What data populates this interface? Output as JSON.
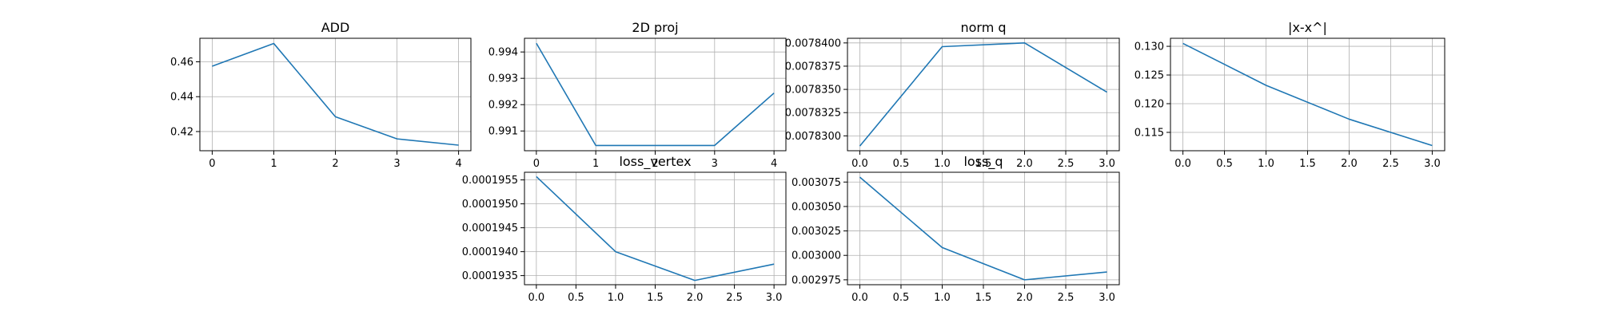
{
  "chart_data": [
    {
      "type": "line",
      "title": "ADD",
      "x": [
        0,
        1,
        2,
        3,
        4
      ],
      "series": [
        {
          "values": [
            0.4575,
            0.4705,
            0.4285,
            0.4158,
            0.4122
          ]
        }
      ],
      "xlim": [
        -0.2,
        4.2
      ],
      "ylim": [
        0.409,
        0.4735
      ],
      "xticks": [
        0,
        1,
        2,
        3,
        4
      ],
      "xtick_labels": [
        "0",
        "1",
        "2",
        "3",
        "4"
      ],
      "yticks": [
        0.42,
        0.44,
        0.46
      ],
      "ytick_labels": [
        "0.42",
        "0.44",
        "0.46"
      ],
      "grid": true,
      "color": "#1f77b4"
    },
    {
      "type": "line",
      "title": "2D proj",
      "x": [
        0,
        1,
        2,
        3,
        4
      ],
      "series": [
        {
          "values": [
            0.99433,
            0.99045,
            0.99045,
            0.99045,
            0.99244
          ]
        }
      ],
      "xlim": [
        -0.2,
        4.2
      ],
      "ylim": [
        0.99025,
        0.99452
      ],
      "xticks": [
        0,
        1,
        2,
        3,
        4
      ],
      "xtick_labels": [
        "0",
        "1",
        "2",
        "3",
        "4"
      ],
      "yticks": [
        0.991,
        0.992,
        0.993,
        0.994
      ],
      "ytick_labels": [
        "0.991",
        "0.992",
        "0.993",
        "0.994"
      ],
      "grid": true,
      "color": "#1f77b4"
    },
    {
      "type": "line",
      "title": "norm q",
      "x": [
        0,
        1,
        2,
        3
      ],
      "series": [
        {
          "values": [
            0.0078289,
            0.0078396,
            0.00784,
            0.0078347
          ]
        }
      ],
      "xlim": [
        -0.15,
        3.15
      ],
      "ylim": [
        0.0078284,
        0.0078405
      ],
      "xticks": [
        0.0,
        0.5,
        1.0,
        1.5,
        2.0,
        2.5,
        3.0
      ],
      "xtick_labels": [
        "0.0",
        "0.5",
        "1.0",
        "1.5",
        "2.0",
        "2.5",
        "3.0"
      ],
      "yticks": [
        0.00783,
        0.007832500000000001,
        0.007835,
        0.0078375,
        0.00784
      ],
      "ytick_labels": [
        "0.0078300",
        "0.0078325",
        "0.0078350",
        "0.0078375",
        "0.0078400"
      ],
      "grid": true,
      "color": "#1f77b4"
    },
    {
      "type": "line",
      "title": "|x-x^|",
      "x": [
        0,
        1,
        2,
        3
      ],
      "series": [
        {
          "values": [
            0.1305,
            0.1232,
            0.1173,
            0.1127
          ]
        }
      ],
      "xlim": [
        -0.15,
        3.15
      ],
      "ylim": [
        0.1118,
        0.1314
      ],
      "xticks": [
        0.0,
        0.5,
        1.0,
        1.5,
        2.0,
        2.5,
        3.0
      ],
      "xtick_labels": [
        "0.0",
        "0.5",
        "1.0",
        "1.5",
        "2.0",
        "2.5",
        "3.0"
      ],
      "yticks": [
        0.115,
        0.12,
        0.125,
        0.13
      ],
      "ytick_labels": [
        "0.115",
        "0.120",
        "0.125",
        "0.130"
      ],
      "grid": true,
      "color": "#1f77b4"
    },
    {
      "type": "line",
      "title": "loss_vertex",
      "x": [
        0,
        1,
        2,
        3
      ],
      "series": [
        {
          "values": [
            0.00019557,
            0.000194,
            0.0001934,
            0.00019374
          ]
        }
      ],
      "xlim": [
        -0.15,
        3.15
      ],
      "ylim": [
        0.00019331,
        0.00019566
      ],
      "xticks": [
        0.0,
        0.5,
        1.0,
        1.5,
        2.0,
        2.5,
        3.0
      ],
      "xtick_labels": [
        "0.0",
        "0.5",
        "1.0",
        "1.5",
        "2.0",
        "2.5",
        "3.0"
      ],
      "yticks": [
        0.0001935,
        0.000194,
        0.0001945,
        0.000195,
        0.0001955
      ],
      "ytick_labels": [
        "0.0001935",
        "0.0001940",
        "0.0001945",
        "0.0001950",
        "0.0001955"
      ],
      "grid": true,
      "color": "#1f77b4"
    },
    {
      "type": "line",
      "title": "loss_q",
      "x": [
        0,
        1,
        2,
        3
      ],
      "series": [
        {
          "values": [
            0.00308,
            0.003008,
            0.002975,
            0.002983
          ]
        }
      ],
      "xlim": [
        -0.15,
        3.15
      ],
      "ylim": [
        0.00297,
        0.003085
      ],
      "xticks": [
        0.0,
        0.5,
        1.0,
        1.5,
        2.0,
        2.5,
        3.0
      ],
      "xtick_labels": [
        "0.0",
        "0.5",
        "1.0",
        "1.5",
        "2.0",
        "2.5",
        "3.0"
      ],
      "yticks": [
        0.002975,
        0.003,
        0.003025,
        0.00305,
        0.003075
      ],
      "ytick_labels": [
        "0.002975",
        "0.003000",
        "0.003025",
        "0.003050",
        "0.003075"
      ],
      "grid": true,
      "color": "#1f77b4"
    }
  ]
}
